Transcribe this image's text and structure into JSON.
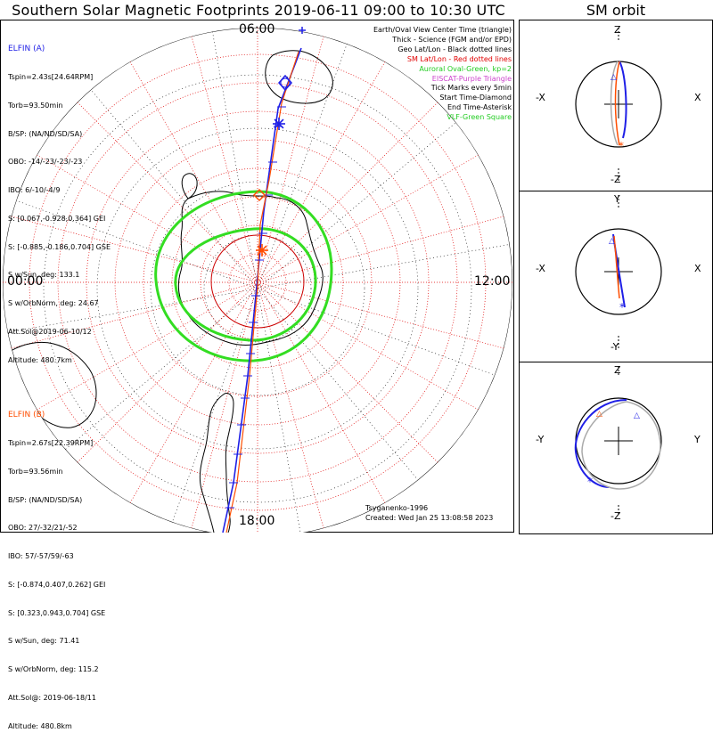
{
  "main_title": "Southern Solar Magnetic Footprints 2019-06-11 09:00 to 10:30 UTC",
  "orbit_title": "SM orbit",
  "map_labels": {
    "top": "06:00",
    "left": "00:00",
    "right": "12:00",
    "bottom": "18:00"
  },
  "elfin_a": {
    "name": "ELFIN (A)",
    "color": "#1f1fe6",
    "lines": [
      "Tspin=2.43s[24.64RPM]",
      "Torb=93.50min",
      "B/SP: (NA/ND/SD/SA)",
      "OBO: -14/-23/-23/-23",
      "IBO: 6/-10/-4/9",
      "S: [0.067,-0.928,0.364] GEI",
      "S: [-0.885,-0.186,0.704] GSE",
      "S w/Sun, deg: 133.1",
      "S w/OrbNorm, deg: 24.67",
      "Att.Sol@2019-06-10/12",
      "Altitude: 480.7km"
    ]
  },
  "elfin_b": {
    "name": "ELFIN (B)",
    "color": "#ff4d00",
    "lines": [
      "Tspin=2.67s[22.39RPM]",
      "Torb=93.56min",
      "B/SP: (NA/ND/SD/SA)",
      "OBO: 27/-32/21/-52",
      "IBO: 57/-57/59/-63",
      "S: [-0.874,0.407,0.262] GEI",
      "S: [0.323,0.943,0.704] GSE",
      "S w/Sun, deg: 71.41",
      "S w/OrbNorm, deg: 115.2",
      "Att.Sol@: 2019-06-18/11",
      "Altitude: 480.8km"
    ]
  },
  "legend": [
    {
      "text": "Earth/Oval View Center Time (triangle)",
      "color": "#000000"
    },
    {
      "text": "Thick - Science (FGM and/or EPD)",
      "color": "#000000"
    },
    {
      "text": "Geo Lat/Lon - Black dotted lines",
      "color": "#000000"
    },
    {
      "text": "SM Lat/Lon - Red dotted lines",
      "color": "#e00000"
    },
    {
      "text": "Auroral Oval-Green, kp=2",
      "color": "#22cc22"
    },
    {
      "text": "EISCAT-Purple Triangle",
      "color": "#cc44cc"
    },
    {
      "text": "Tick Marks every 5min",
      "color": "#000000"
    },
    {
      "text": "Start Time-Diamond",
      "color": "#000000"
    },
    {
      "text": "End Time-Asterisk",
      "color": "#000000"
    },
    {
      "text": "VLF-Green Square",
      "color": "#22cc22"
    }
  ],
  "credits": [
    "Tsyganenko-1996",
    "Created: Wed Jan 25 13:08:58 2023"
  ],
  "orbit_panels": [
    {
      "top": "Z",
      "bottom": "-Z",
      "left": "-X",
      "right": "X"
    },
    {
      "top": "Y",
      "bottom": "-Y",
      "left": "-X",
      "right": "X"
    },
    {
      "top": "Z",
      "bottom": "-Z",
      "left": "-Y",
      "right": "Y"
    }
  ],
  "colors": {
    "elfin_a_track": "#1f1fe6",
    "elfin_b_track": "#ff4d00",
    "auroral_oval": "#33dd22",
    "sm_grid": "#e00000",
    "geo_grid": "#000000",
    "sm_circle": "#cc0000"
  }
}
